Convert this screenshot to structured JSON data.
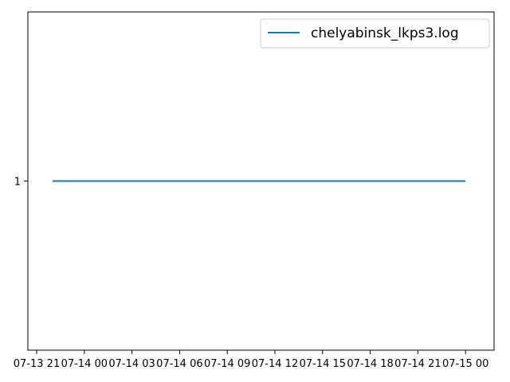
{
  "chart_data": {
    "type": "line",
    "title": "",
    "xlabel": "",
    "ylabel": "",
    "x_ticks": [
      "07-13 21",
      "07-14 00",
      "07-14 03",
      "07-14 06",
      "07-14 09",
      "07-14 12",
      "07-14 15",
      "07-14 18",
      "07-14 21",
      "07-15 00"
    ],
    "y_ticks": [
      "1"
    ],
    "ylim": [
      0.5,
      1.5
    ],
    "grid": false,
    "legend": {
      "placement": "top-right",
      "entries": [
        "chelyabinsk_lkps3.log"
      ]
    },
    "series": [
      {
        "name": "chelyabinsk_lkps3.log",
        "color": "#1f77b4",
        "x": [
          "07-13 22",
          "07-15 00"
        ],
        "y": [
          1,
          1
        ]
      }
    ]
  }
}
